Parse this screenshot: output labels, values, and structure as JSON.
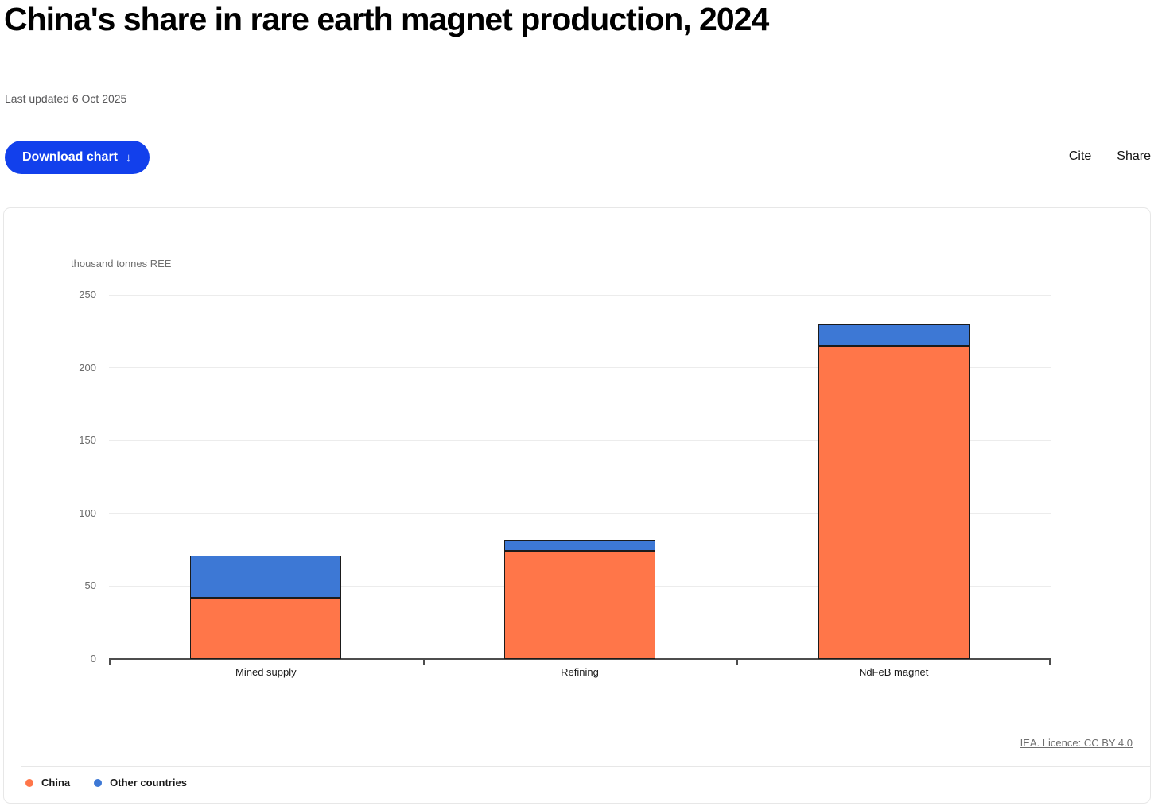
{
  "header": {
    "title": "China's share in rare earth magnet production, 2024",
    "last_updated": "Last updated 6 Oct 2025"
  },
  "toolbar": {
    "download_label": "Download chart",
    "download_icon": "↓",
    "cite_label": "Cite",
    "share_label": "Share"
  },
  "chart_data": {
    "type": "bar",
    "stacked": true,
    "title": "China's share in rare earth magnet production, 2024",
    "ylabel": "thousand tonnes REE",
    "xlabel": "",
    "categories": [
      "Mined supply",
      "Refining",
      "NdFeB magnet"
    ],
    "series": [
      {
        "name": "China",
        "color": "#FF7649",
        "values": [
          42,
          74,
          215
        ]
      },
      {
        "name": "Other countries",
        "color": "#3D78D5",
        "values": [
          29,
          8,
          15
        ]
      }
    ],
    "totals": [
      71,
      82,
      230
    ],
    "ylim": [
      0,
      250
    ],
    "yticks": [
      0,
      50,
      100,
      150,
      200,
      250
    ],
    "grid": true,
    "legend_position": "bottom-left"
  },
  "footer": {
    "source_link": "IEA. Licence: CC BY 4.0"
  },
  "colors": {
    "accent_button": "#1240EC",
    "china": "#FF7649",
    "other_countries": "#3D78D5",
    "axis": "#4d4d4d",
    "gridline": "#ececec"
  }
}
